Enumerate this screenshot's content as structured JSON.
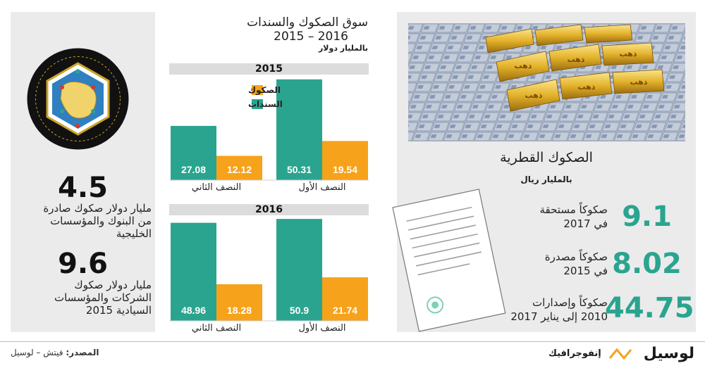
{
  "left_panel": {
    "stat1_value": "4.5",
    "stat1_desc_1": "مليار دولار صكوك صادرة",
    "stat1_desc_2": "من البنوك والمؤسسات",
    "stat1_desc_3": "الخليجية",
    "stat2_value": "9.6",
    "stat2_desc_1": "مليار دولار صكوك",
    "stat2_desc_2": "الشركات والمؤسسات",
    "stat2_desc_3": "السيادية 2015",
    "emblem_icon": "gcc-emblem-icon"
  },
  "chart_section": {
    "title_line1": "سوق الصكوك والسندات",
    "title_line2": "2016 – 2015",
    "unit": "بالمليار دولار",
    "colors": {
      "sukuk": "#f7a21b",
      "bonds": "#2aa48f"
    }
  },
  "chart_data": [
    {
      "type": "bar",
      "title": "2015",
      "categories": [
        "النصف الأول",
        "النصف الثاني"
      ],
      "series": [
        {
          "name": "الصكوك",
          "values": [
            19.54,
            12.12
          ]
        },
        {
          "name": "السندات",
          "values": [
            50.31,
            27.08
          ]
        }
      ],
      "ylim": [
        0,
        52
      ],
      "legend": "top-left"
    },
    {
      "type": "bar",
      "title": "2016",
      "categories": [
        "النصف الأول",
        "النصف الثاني"
      ],
      "series": [
        {
          "name": "الصكوك",
          "values": [
            21.74,
            18.28
          ]
        },
        {
          "name": "السندات",
          "values": [
            50.9,
            48.96
          ]
        }
      ],
      "ylim": [
        0,
        52
      ]
    }
  ],
  "right_panel": {
    "title": "الصكوك القطرية",
    "unit": "بالمليار ريال",
    "items": [
      {
        "value": "9.1",
        "label_1": "صكوكاً مستحقة",
        "label_2": "في 2017"
      },
      {
        "value": "8.02",
        "label_1": "صكوكاً مصدرة",
        "label_2": "في 2015"
      },
      {
        "value": "44.75",
        "label_1": "صكوكاً وإصدارات",
        "label_2": "2010 إلى يناير 2017"
      }
    ],
    "photo_caption": "ذهب"
  },
  "footer": {
    "source_label": "المصدر:",
    "source_text": " فيتش – لوسيل",
    "brand_name": "لوسيل",
    "brand_tag": "إنفوجرافيك"
  }
}
